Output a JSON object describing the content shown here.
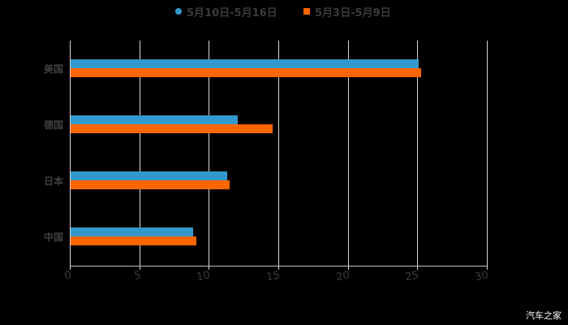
{
  "legend": [
    {
      "label": "5月10日-5月16日",
      "color": "#3399cc",
      "shape": "circle"
    },
    {
      "label": "5月3日-5月9日",
      "color": "#ff6600",
      "shape": "square"
    }
  ],
  "watermark": "汽车之家",
  "chart_data": {
    "type": "bar",
    "orientation": "horizontal",
    "title": "",
    "xlabel": "",
    "ylabel": "",
    "categories": [
      "美国",
      "德国",
      "日本",
      "中国"
    ],
    "series": [
      {
        "name": "5月10日-5月16日",
        "color": "#3399cc",
        "values": [
          25.1,
          12.1,
          11.3,
          8.9
        ]
      },
      {
        "name": "5月3日-5月9日",
        "color": "#ff6600",
        "values": [
          25.3,
          14.6,
          11.5,
          9.1
        ]
      }
    ],
    "xlim": [
      0,
      30
    ],
    "xticks": [
      0,
      5,
      10,
      15,
      20,
      25,
      30
    ],
    "xtick_labels": [
      "0",
      "5",
      "10",
      "15",
      "20",
      "25",
      "30"
    ],
    "grid": "vertical",
    "legend_position": "top"
  }
}
